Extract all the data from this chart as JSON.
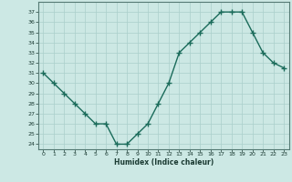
{
  "x": [
    0,
    1,
    2,
    3,
    4,
    5,
    6,
    7,
    8,
    9,
    10,
    11,
    12,
    13,
    14,
    15,
    16,
    17,
    18,
    19,
    20,
    21,
    22,
    23
  ],
  "y": [
    31,
    30,
    29,
    28,
    27,
    26,
    26,
    24,
    24,
    25,
    26,
    28,
    30,
    33,
    34,
    35,
    36,
    37,
    37,
    37,
    35,
    33,
    32,
    31.5
  ],
  "line_color": "#1a6b5a",
  "marker_color": "#1a6b5a",
  "bg_color": "#cce8e4",
  "grid_color": "#aacfcb",
  "title": "",
  "xlabel": "Humidex (Indice chaleur)",
  "ylabel": "",
  "ylim": [
    23.5,
    38.0
  ],
  "xlim": [
    -0.5,
    23.5
  ],
  "yticks": [
    24,
    25,
    26,
    27,
    28,
    29,
    30,
    31,
    32,
    33,
    34,
    35,
    36,
    37
  ],
  "xticks": [
    0,
    1,
    2,
    3,
    4,
    5,
    6,
    7,
    8,
    9,
    10,
    11,
    12,
    13,
    14,
    15,
    16,
    17,
    18,
    19,
    20,
    21,
    22,
    23
  ],
  "line_width": 1.0,
  "marker_size": 4
}
